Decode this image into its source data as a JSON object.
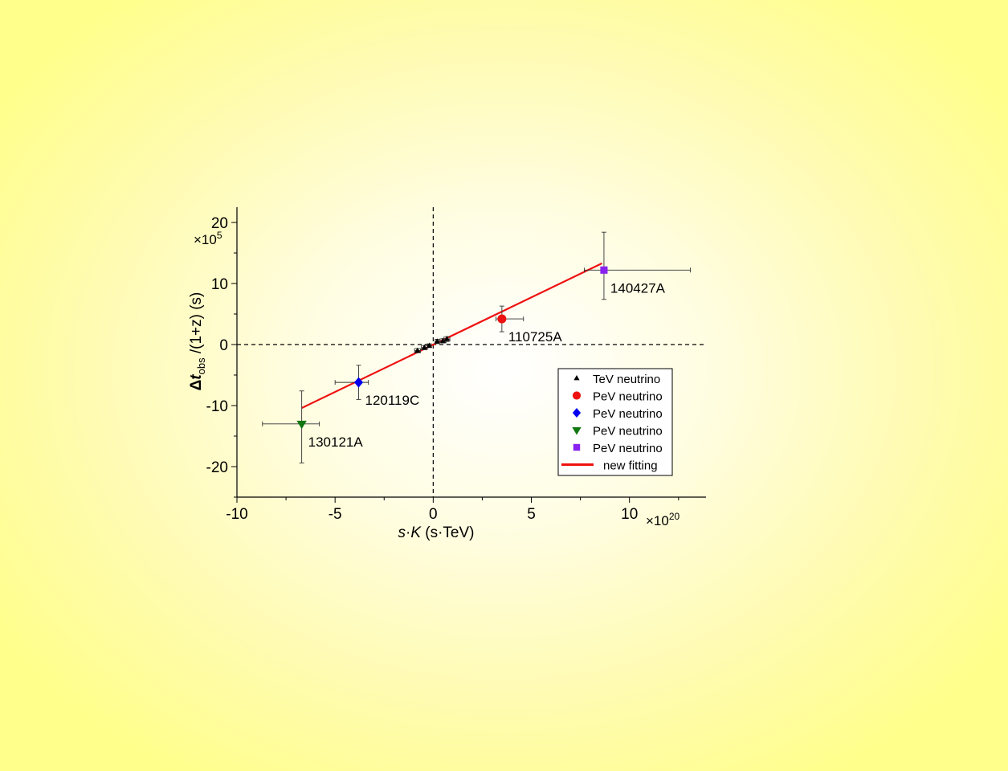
{
  "chart_data": {
    "type": "scatter",
    "title": "",
    "xlabel": {
      "italic": "s",
      "mid": "·",
      "italic2": "K",
      "rest": " (s·TeV)"
    },
    "ylabel": {
      "delta": "Δ",
      "italic": "t",
      "sub": "obs",
      "rest": " /(1+z) (s)"
    },
    "x_multiplier": {
      "base": "×10",
      "exp": "20"
    },
    "y_multiplier": {
      "base": "×10",
      "exp": "5"
    },
    "xlim": [
      -10,
      13.9
    ],
    "ylim": [
      -25,
      22.5
    ],
    "x_ticks": [
      -10,
      -5,
      0,
      5,
      10
    ],
    "y_ticks": [
      -20,
      -10,
      0,
      10,
      20
    ],
    "x_tick_labels": [
      "-10",
      "-5",
      "0",
      "5",
      "10"
    ],
    "y_tick_labels": [
      "-20",
      "-10",
      "0",
      "10",
      "20"
    ],
    "reference_lines": {
      "x": 0,
      "y": 0,
      "style": "dashed"
    },
    "series": [
      {
        "name": "TeV neutrino",
        "marker": "triangle-up",
        "color": "#000000",
        "points": [
          {
            "x": -0.8,
            "y": -1.0,
            "xerr": 0.15,
            "yerr": 0.35
          },
          {
            "x": -0.45,
            "y": -0.5,
            "xerr": 0.15,
            "yerr": 0.35
          },
          {
            "x": -0.2,
            "y": -0.2,
            "xerr": 0.1,
            "yerr": 0.3
          },
          {
            "x": 0.2,
            "y": 0.5,
            "xerr": 0.1,
            "yerr": 0.35
          },
          {
            "x": 0.5,
            "y": 0.6,
            "xerr": 0.15,
            "yerr": 0.35
          },
          {
            "x": 0.7,
            "y": 0.9,
            "xerr": 0.15,
            "yerr": 0.4
          }
        ]
      },
      {
        "name": "PeV neutrino",
        "marker": "circle",
        "color": "#ee1111",
        "points": [
          {
            "x": 3.5,
            "y": 4.2,
            "xerr_lo": 0.3,
            "xerr_hi": 1.1,
            "yerr": 2.1,
            "label": "110725A"
          }
        ]
      },
      {
        "name": "PeV neutrino",
        "marker": "diamond",
        "color": "#0000ee",
        "points": [
          {
            "x": -3.8,
            "y": -6.2,
            "xerr_lo": 1.2,
            "xerr_hi": 0.5,
            "yerr": 2.8,
            "label": "120119C"
          }
        ]
      },
      {
        "name": "PeV neutrino",
        "marker": "triangle-down",
        "color": "#117711",
        "points": [
          {
            "x": -6.7,
            "y": -13.0,
            "xerr_lo": 2.0,
            "xerr_hi": 0.9,
            "yerr_hi": 5.4,
            "yerr_lo": 6.4,
            "label": "130121A"
          }
        ]
      },
      {
        "name": "PeV neutrino",
        "marker": "square",
        "color": "#8822ee",
        "points": [
          {
            "x": 8.7,
            "y": 12.2,
            "xerr_lo": 1.0,
            "xerr_hi": 4.4,
            "yerr_hi": 6.2,
            "yerr_lo": 4.8,
            "label": "140427A"
          }
        ]
      }
    ],
    "fit": {
      "name": "new fitting",
      "color": "#ee1111",
      "x": [
        -6.7,
        8.6
      ],
      "y": [
        -10.4,
        13.3
      ]
    },
    "legend": {
      "placement": "lower-right",
      "entries": [
        {
          "label": "TeV neutrino",
          "marker": "triangle-up",
          "color": "#000000"
        },
        {
          "label": "PeV neutrino",
          "marker": "circle",
          "color": "#ee1111"
        },
        {
          "label": "PeV neutrino",
          "marker": "diamond",
          "color": "#0000ee"
        },
        {
          "label": "PeV neutrino",
          "marker": "triangle-down",
          "color": "#117711"
        },
        {
          "label": "PeV neutrino",
          "marker": "square",
          "color": "#8822ee"
        },
        {
          "label": "new fitting",
          "marker": "line",
          "color": "#ee1111"
        }
      ]
    }
  }
}
